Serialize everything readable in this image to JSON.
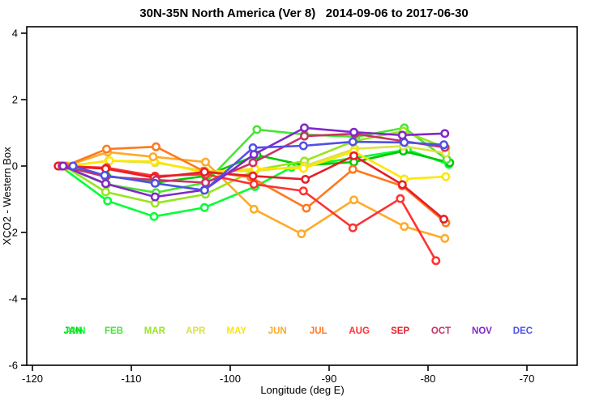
{
  "title": "30N-35N North America (Ver 8)   2014-09-06 to 2017-06-30",
  "chart_data": {
    "type": "line",
    "title": "30N-35N North America (Ver 8)   2014-09-06 to 2017-06-30",
    "xlabel": "Longitude (deg E)",
    "ylabel": "XCO2 - Western Box",
    "xlim": [
      -120.6,
      -64.9
    ],
    "ylim": [
      -6,
      4
    ],
    "x_ticks": [
      -120,
      -110,
      -100,
      -90,
      -80,
      -70
    ],
    "y_ticks": [
      4,
      2,
      0,
      -2,
      -4,
      -6
    ],
    "grid": false,
    "legend_position": "bottom-inside",
    "marker": "open-circle-white-fill",
    "series": [
      {
        "name": "ANN",
        "color": "#00FF32",
        "points": [
          [
            -117.2,
            0
          ],
          [
            -112.4,
            -1.05
          ],
          [
            -107.7,
            -1.52
          ],
          [
            -102.6,
            -1.25
          ],
          [
            -97.5,
            -0.62
          ],
          [
            -93.8,
            -0.04
          ],
          [
            -82.1,
            0.49
          ],
          [
            -77.9,
            0.05
          ]
        ]
      },
      {
        "name": "JAN",
        "color": "#00C800",
        "points": [
          [
            -117.2,
            0
          ],
          [
            -112.5,
            -0.3
          ],
          [
            -107.5,
            -0.5
          ],
          [
            -102.5,
            -0.3
          ],
          [
            -97.3,
            0.33
          ],
          [
            -92.5,
            0.02
          ],
          [
            -87.5,
            0.12
          ],
          [
            -82.5,
            0.45
          ],
          [
            -77.8,
            0.1
          ]
        ]
      },
      {
        "name": "FEB",
        "color": "#46E632",
        "points": [
          [
            -117.0,
            0
          ],
          [
            -112.5,
            -0.55
          ],
          [
            -107.5,
            -0.8
          ],
          [
            -102.5,
            -0.5
          ],
          [
            -97.3,
            1.1
          ],
          [
            -92.5,
            0.95
          ],
          [
            -87.3,
            0.88
          ],
          [
            -82.4,
            1.15
          ],
          [
            -78.1,
            0.2
          ]
        ]
      },
      {
        "name": "MAR",
        "color": "#96E61E",
        "points": [
          [
            -116.8,
            0
          ],
          [
            -112.6,
            -0.78
          ],
          [
            -107.6,
            -1.12
          ],
          [
            -102.5,
            -0.85
          ],
          [
            -97.5,
            -0.12
          ],
          [
            -92.5,
            0.15
          ],
          [
            -87.5,
            0.75
          ],
          [
            -82.5,
            1.05
          ],
          [
            -78.2,
            0.55
          ]
        ]
      },
      {
        "name": "APR",
        "color": "#DCE146",
        "points": [
          [
            -116.5,
            0
          ],
          [
            -112.3,
            0.16
          ],
          [
            -107.6,
            0.1
          ],
          [
            -102.5,
            -0.15
          ],
          [
            -97.5,
            -0.15
          ],
          [
            -92.5,
            0.0
          ],
          [
            -87.4,
            0.52
          ],
          [
            -82.5,
            0.6
          ],
          [
            -78.2,
            0.39
          ]
        ]
      },
      {
        "name": "MAY",
        "color": "#FFE600",
        "points": [
          [
            -116.3,
            0
          ],
          [
            -112.2,
            0.16
          ],
          [
            -107.7,
            0.14
          ],
          [
            -102.5,
            -0.2
          ],
          [
            -97.5,
            -0.08
          ],
          [
            -92.6,
            -0.07
          ],
          [
            -87.5,
            0.44
          ],
          [
            -82.4,
            -0.39
          ],
          [
            -78.2,
            -0.32
          ]
        ]
      },
      {
        "name": "JUN",
        "color": "#FFAA28",
        "points": [
          [
            -116.6,
            0
          ],
          [
            -112.4,
            0.42
          ],
          [
            -107.8,
            0.28
          ],
          [
            -102.5,
            0.12
          ],
          [
            -97.6,
            -1.3
          ],
          [
            -92.8,
            -2.04
          ],
          [
            -87.5,
            -1.02
          ],
          [
            -82.4,
            -1.82
          ],
          [
            -78.3,
            -2.18
          ]
        ]
      },
      {
        "name": "JUL",
        "color": "#FF781E",
        "points": [
          [
            -116.7,
            0
          ],
          [
            -112.5,
            0.51
          ],
          [
            -107.5,
            0.58
          ],
          [
            -102.7,
            -0.15
          ],
          [
            -97.9,
            -0.34
          ],
          [
            -92.3,
            -1.27
          ],
          [
            -87.6,
            -0.1
          ],
          [
            -82.6,
            -0.6
          ],
          [
            -78.2,
            -1.71
          ]
        ]
      },
      {
        "name": "AUG",
        "color": "#FF3232",
        "points": [
          [
            -117.1,
            0
          ],
          [
            -112.5,
            -0.05
          ],
          [
            -107.6,
            -0.3
          ],
          [
            -102.5,
            -0.25
          ],
          [
            -97.6,
            -0.55
          ],
          [
            -92.6,
            -0.75
          ],
          [
            -87.6,
            -1.86
          ],
          [
            -82.8,
            -0.98
          ],
          [
            -79.2,
            -2.85
          ]
        ]
      },
      {
        "name": "SEP",
        "color": "#E61E28",
        "points": [
          [
            -117.4,
            0
          ],
          [
            -112.6,
            -0.08
          ],
          [
            -107.7,
            -0.35
          ],
          [
            -102.6,
            -0.18
          ],
          [
            -97.7,
            -0.3
          ],
          [
            -92.4,
            -0.4
          ],
          [
            -87.5,
            0.31
          ],
          [
            -82.6,
            -0.56
          ],
          [
            -78.4,
            -1.6
          ]
        ]
      },
      {
        "name": "OCT",
        "color": "#C83264",
        "points": [
          [
            -117.0,
            0
          ],
          [
            -112.6,
            -0.32
          ],
          [
            -107.5,
            -0.42
          ],
          [
            -102.5,
            -0.5
          ],
          [
            -97.7,
            0.1
          ],
          [
            -92.5,
            0.9
          ],
          [
            -87.4,
            0.97
          ],
          [
            -82.5,
            0.75
          ],
          [
            -78.3,
            0.56
          ]
        ]
      },
      {
        "name": "NOV",
        "color": "#8228C8",
        "points": [
          [
            -116.9,
            0
          ],
          [
            -112.6,
            -0.53
          ],
          [
            -107.6,
            -0.93
          ],
          [
            -102.6,
            -0.72
          ],
          [
            -97.6,
            0.35
          ],
          [
            -92.5,
            1.15
          ],
          [
            -87.5,
            1.02
          ],
          [
            -82.6,
            0.93
          ],
          [
            -78.3,
            0.98
          ]
        ]
      },
      {
        "name": "DEC",
        "color": "#5050E6",
        "points": [
          [
            -115.9,
            0
          ],
          [
            -112.7,
            -0.28
          ],
          [
            -107.6,
            -0.52
          ],
          [
            -102.6,
            -0.73
          ],
          [
            -97.7,
            0.55
          ],
          [
            -92.6,
            0.61
          ],
          [
            -87.6,
            0.73
          ],
          [
            -82.4,
            0.71
          ],
          [
            -78.4,
            0.64
          ]
        ]
      }
    ],
    "legend": [
      {
        "label": "JAN",
        "color": "#00C800"
      },
      {
        "label": "ANN",
        "color": "#00FF32"
      },
      {
        "label": "FEB",
        "color": "#46E632"
      },
      {
        "label": "MAR",
        "color": "#96E61E"
      },
      {
        "label": "APR",
        "color": "#DCE146"
      },
      {
        "label": "MAY",
        "color": "#FFE600"
      },
      {
        "label": "JUN",
        "color": "#FFAA28"
      },
      {
        "label": "JUL",
        "color": "#FF781E"
      },
      {
        "label": "AUG",
        "color": "#FF3232"
      },
      {
        "label": "SEP",
        "color": "#E61E28"
      },
      {
        "label": "OCT",
        "color": "#C83264"
      },
      {
        "label": "NOV",
        "color": "#8228C8"
      },
      {
        "label": "DEC",
        "color": "#5050E6"
      }
    ]
  }
}
